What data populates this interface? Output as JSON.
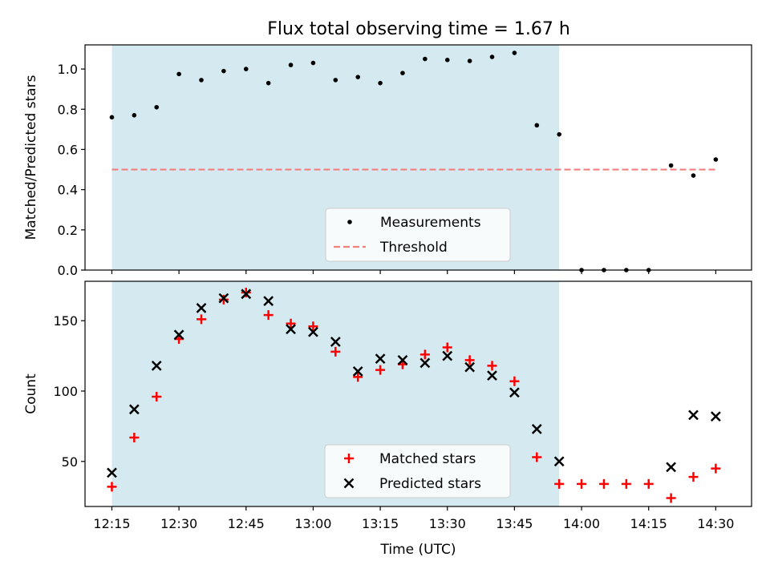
{
  "figure": {
    "title": "Flux total observing time = 1.67 h",
    "colors": {
      "shade": "#d4eaf0",
      "measure": "#000000",
      "threshold": "#f08080",
      "matched": "#ff0000",
      "predicted": "#000000"
    }
  },
  "chart_data": [
    {
      "type": "scatter",
      "title": "Flux total observing time = 1.67 h",
      "xlabel": "",
      "ylabel": "Matched/Predicted stars",
      "xlim": [
        "12:09",
        "14:38"
      ],
      "ylim": [
        0,
        1.12
      ],
      "yticks": [
        0.0,
        0.2,
        0.4,
        0.6,
        0.8,
        1.0
      ],
      "yticklabels": [
        "0.0",
        "0.2",
        "0.4",
        "0.6",
        "0.8",
        "1.0"
      ],
      "shaded_interval": [
        "12:15",
        "13:55"
      ],
      "legend_position": "lower center",
      "series": [
        {
          "name": "Measurements",
          "marker": "dot",
          "x": [
            "12:15",
            "12:20",
            "12:25",
            "12:30",
            "12:35",
            "12:40",
            "12:45",
            "12:50",
            "12:55",
            "13:00",
            "13:05",
            "13:10",
            "13:15",
            "13:20",
            "13:25",
            "13:30",
            "13:35",
            "13:40",
            "13:45",
            "13:50",
            "13:55",
            "14:00",
            "14:05",
            "14:10",
            "14:15",
            "14:20",
            "14:25",
            "14:30"
          ],
          "y": [
            0.76,
            0.77,
            0.81,
            0.975,
            0.945,
            0.99,
            1.0,
            0.93,
            1.02,
            1.03,
            0.945,
            0.96,
            0.93,
            0.98,
            1.05,
            1.045,
            1.04,
            1.06,
            1.08,
            0.72,
            0.675,
            0.0,
            0.0,
            0.0,
            0.0,
            0.52,
            0.47,
            0.55
          ]
        },
        {
          "name": "Threshold",
          "marker": "dashed-line",
          "x": [
            "12:15",
            "14:30"
          ],
          "y": [
            0.5,
            0.5
          ]
        }
      ]
    },
    {
      "type": "scatter",
      "title": "",
      "xlabel": "Time (UTC)",
      "ylabel": "Count",
      "xlim": [
        "12:09",
        "14:38"
      ],
      "ylim": [
        18,
        178
      ],
      "xticks": [
        "12:15",
        "12:30",
        "12:45",
        "13:00",
        "13:15",
        "13:30",
        "13:45",
        "14:00",
        "14:15",
        "14:30"
      ],
      "yticks": [
        50,
        100,
        150
      ],
      "yticklabels": [
        "50",
        "100",
        "150"
      ],
      "shaded_interval": [
        "12:15",
        "13:55"
      ],
      "legend_position": "lower center",
      "series": [
        {
          "name": "Matched stars",
          "marker": "plus",
          "x": [
            "12:15",
            "12:20",
            "12:25",
            "12:30",
            "12:35",
            "12:40",
            "12:45",
            "12:50",
            "12:55",
            "13:00",
            "13:05",
            "13:10",
            "13:15",
            "13:20",
            "13:25",
            "13:30",
            "13:35",
            "13:40",
            "13:45",
            "13:50",
            "13:55",
            "14:00",
            "14:05",
            "14:10",
            "14:15",
            "14:20",
            "14:25",
            "14:30"
          ],
          "y": [
            32,
            67,
            96,
            137,
            151,
            165,
            170,
            154,
            148,
            146,
            128,
            110,
            115,
            119,
            126,
            131,
            122,
            118,
            107,
            53,
            34,
            34,
            34,
            34,
            34,
            24,
            39,
            45
          ]
        },
        {
          "name": "Predicted stars",
          "marker": "x",
          "x": [
            "12:15",
            "12:20",
            "12:25",
            "12:30",
            "12:35",
            "12:40",
            "12:45",
            "12:50",
            "12:55",
            "13:00",
            "13:05",
            "13:10",
            "13:15",
            "13:20",
            "13:25",
            "13:30",
            "13:35",
            "13:40",
            "13:45",
            "13:50",
            "13:55",
            "14:20",
            "14:25",
            "14:30"
          ],
          "y": [
            42,
            87,
            118,
            140,
            159,
            166,
            169,
            164,
            144,
            142,
            135,
            114,
            123,
            122,
            120,
            125,
            117,
            111,
            99,
            73,
            50,
            46,
            83,
            82
          ]
        }
      ]
    }
  ]
}
